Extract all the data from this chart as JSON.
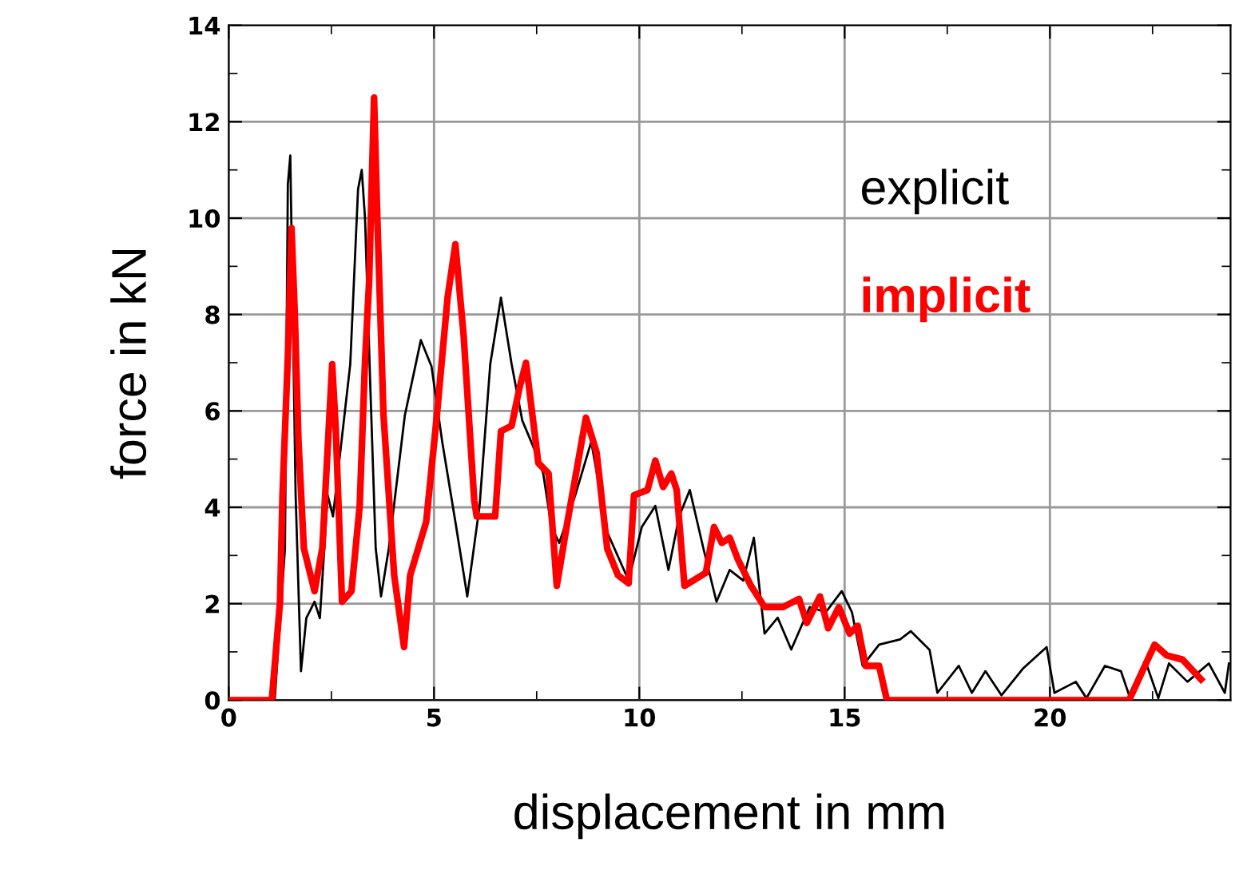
{
  "chart_data": {
    "type": "line",
    "xlabel": "displacement in mm",
    "ylabel": "force in kN",
    "xlim": [
      0,
      24.4
    ],
    "ylim": [
      0,
      14
    ],
    "xticks": [
      0,
      {
        "value": 2.5,
        "label": null
      },
      5,
      {
        "value": 7.5,
        "label": null
      },
      10,
      {
        "value": 12.5,
        "label": null
      },
      15,
      {
        "value": 17.5,
        "label": null
      },
      20,
      {
        "value": 22.5,
        "label": null
      }
    ],
    "yticks": [
      0,
      {
        "value": 1,
        "label": null
      },
      2,
      {
        "value": 3,
        "label": null
      },
      4,
      {
        "value": 5,
        "label": null
      },
      6,
      {
        "value": 7,
        "label": null
      },
      8,
      {
        "value": 9,
        "label": null
      },
      10,
      {
        "value": 11,
        "label": null
      },
      12,
      {
        "value": 13,
        "label": null
      },
      14
    ],
    "grid": true,
    "legend": "top right",
    "line_style": "solid",
    "marker": "none",
    "series": [
      {
        "name": "explicit",
        "color": "#000000",
        "x": [
          0,
          1.12,
          1.37,
          1.44,
          1.5,
          1.63,
          1.76,
          1.89,
          2.09,
          2.22,
          2.41,
          2.54,
          2.96,
          3.15,
          3.24,
          3.32,
          3.45,
          3.58,
          3.71,
          3.9,
          4.29,
          4.68,
          4.94,
          5.2,
          5.52,
          5.81,
          6.11,
          6.37,
          6.63,
          6.89,
          7.15,
          7.53,
          7.66,
          7.86,
          8.05,
          8.44,
          8.83,
          9.22,
          9.74,
          10.06,
          10.39,
          10.71,
          10.97,
          11.23,
          11.56,
          11.88,
          12.2,
          12.53,
          12.79,
          13.05,
          13.37,
          13.7,
          14.15,
          14.54,
          14.93,
          15.18,
          15.44,
          15.84,
          16.35,
          16.61,
          17.07,
          17.26,
          17.78,
          18.1,
          18.43,
          18.82,
          19.34,
          19.92,
          20.11,
          20.63,
          20.89,
          21.34,
          21.73,
          21.93,
          22.32,
          22.64,
          22.9,
          23.35,
          23.87,
          24.26,
          24.36
        ],
        "values": [
          0,
          0,
          3.15,
          10.7,
          11.3,
          4.25,
          0.6,
          1.7,
          2.04,
          1.7,
          4.25,
          3.81,
          6.97,
          10.6,
          11.0,
          10.0,
          6.47,
          3.15,
          2.15,
          3.15,
          5.91,
          7.47,
          6.92,
          5.36,
          3.7,
          2.15,
          4.03,
          6.97,
          8.35,
          6.97,
          5.8,
          5.03,
          4.7,
          3.59,
          3.26,
          4.25,
          5.36,
          3.48,
          2.48,
          3.59,
          4.03,
          2.7,
          3.81,
          4.36,
          3.15,
          2.04,
          2.7,
          2.48,
          3.37,
          1.38,
          1.71,
          1.05,
          1.93,
          1.82,
          2.26,
          1.82,
          0.71,
          1.15,
          1.26,
          1.43,
          1.04,
          0.15,
          0.71,
          0.15,
          0.6,
          0.1,
          0.65,
          1.1,
          0.15,
          0.38,
          0.04,
          0.71,
          0.6,
          0.1,
          0.82,
          0.04,
          0.76,
          0.38,
          0.76,
          0.15,
          0.76
        ]
      },
      {
        "name": "implicit",
        "color": "#ff0000",
        "x": [
          0,
          1.05,
          1.25,
          1.31,
          1.44,
          1.53,
          1.61,
          1.7,
          1.83,
          2.09,
          2.28,
          2.52,
          2.61,
          2.76,
          2.99,
          3.19,
          3.32,
          3.42,
          3.54,
          3.62,
          3.77,
          4.03,
          4.27,
          4.42,
          4.81,
          5.07,
          5.33,
          5.52,
          5.72,
          5.98,
          6.04,
          6.49,
          6.63,
          6.89,
          7.08,
          7.24,
          7.54,
          7.79,
          7.99,
          8.25,
          8.7,
          8.96,
          9.22,
          9.48,
          9.74,
          9.87,
          10.2,
          10.39,
          10.58,
          10.78,
          10.91,
          11.1,
          11.62,
          11.82,
          12.01,
          12.2,
          12.4,
          12.72,
          13.05,
          13.5,
          13.89,
          14.08,
          14.4,
          14.6,
          14.86,
          15.12,
          15.32,
          15.51,
          15.84,
          16.03,
          21.93,
          22.55,
          22.84,
          23.23,
          23.68
        ],
        "values": [
          0,
          0,
          2.04,
          4.25,
          7.12,
          9.79,
          8.0,
          5.36,
          3.15,
          2.26,
          3.15,
          6.97,
          5.58,
          2.04,
          2.26,
          4.03,
          7.03,
          8.69,
          12.5,
          10.0,
          5.91,
          2.59,
          1.1,
          2.59,
          3.7,
          5.91,
          8.35,
          9.46,
          7.58,
          4.14,
          3.81,
          3.81,
          5.58,
          5.69,
          6.47,
          7.0,
          4.92,
          4.7,
          2.37,
          3.7,
          5.86,
          5.14,
          3.14,
          2.59,
          2.42,
          4.25,
          4.36,
          4.97,
          4.42,
          4.7,
          4.36,
          2.37,
          2.64,
          3.59,
          3.26,
          3.37,
          2.92,
          2.37,
          1.93,
          1.93,
          2.1,
          1.6,
          2.15,
          1.49,
          1.93,
          1.38,
          1.54,
          0.71,
          0.71,
          0,
          0,
          1.15,
          0.93,
          0.84,
          0.43
        ]
      }
    ]
  }
}
